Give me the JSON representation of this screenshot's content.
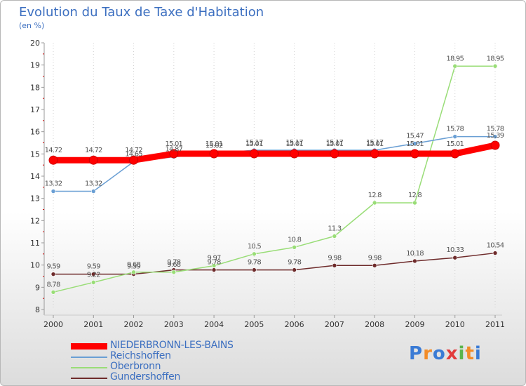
{
  "chart_data": {
    "type": "line",
    "title": "Evolution du Taux de Taxe d'Habitation",
    "ylabel": "(en %)",
    "categories": [
      "2000",
      "2001",
      "2002",
      "2003",
      "2004",
      "2005",
      "2006",
      "2007",
      "2008",
      "2009",
      "2010",
      "2011"
    ],
    "ylim": [
      8,
      20
    ],
    "yticks": [
      "8",
      "9",
      "10",
      "11",
      "12",
      "13",
      "14",
      "15",
      "16",
      "17",
      "18",
      "19",
      "20"
    ],
    "series": [
      {
        "name": "Gundershoffen",
        "color": "#6e2b2b",
        "values": [
          9.59,
          9.59,
          9.59,
          9.78,
          9.78,
          9.78,
          9.78,
          9.98,
          9.98,
          10.18,
          10.33,
          10.54
        ],
        "labels": [
          "9.59",
          "9.59",
          "9.59",
          "9.78",
          "9.78",
          "9.78",
          "9.78",
          "9.98",
          "9.98",
          "10.18",
          "10.33",
          "10.54"
        ]
      },
      {
        "name": "Oberbronn",
        "color": "#99dd77",
        "values": [
          8.78,
          9.22,
          9.68,
          9.68,
          9.97,
          10.5,
          10.8,
          11.3,
          12.8,
          12.8,
          18.95,
          18.95
        ],
        "labels": [
          "8.78",
          "9.22",
          "9.68",
          "9.68",
          "9.97",
          "10.5",
          "10.8",
          "11.3",
          "12.8",
          "12.8",
          "18.95",
          "18.95"
        ]
      },
      {
        "name": "Reichshoffen",
        "color": "#6a9fd4",
        "values": [
          13.32,
          13.32,
          14.65,
          14.87,
          15.02,
          15.17,
          15.17,
          15.17,
          15.17,
          15.47,
          15.78,
          15.78
        ],
        "labels": [
          "13.32",
          "13.32",
          "14.65",
          "14.87",
          "15.02",
          "15.17",
          "15.17",
          "15.17",
          "15.17",
          "15.47",
          "15.78",
          "15.78"
        ]
      },
      {
        "name": "NIEDERBRONN-LES-BAINS",
        "color": "#ff0000",
        "values": [
          14.72,
          14.72,
          14.72,
          15.01,
          15.01,
          15.01,
          15.01,
          15.01,
          15.01,
          15.01,
          15.01,
          15.39
        ],
        "labels": [
          "14.72",
          "14.72",
          "14.72",
          "15.01",
          "15.01",
          "15.01",
          "15.01",
          "15.01",
          "15.01",
          "15.01",
          "15.01",
          "15.39"
        ]
      }
    ]
  },
  "legend": [
    {
      "name": "NIEDERBRONN-LES-BAINS",
      "color": "#ff0000"
    },
    {
      "name": "Reichshoffen",
      "color": "#6a9fd4"
    },
    {
      "name": "Oberbronn",
      "color": "#99dd77"
    },
    {
      "name": "Gundershoffen",
      "color": "#6e2b2b"
    }
  ],
  "logo": {
    "text": "Proxiti"
  }
}
